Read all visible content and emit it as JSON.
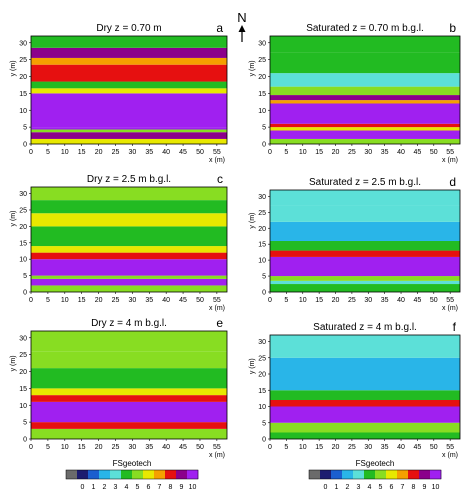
{
  "chart_data": [
    {
      "type": "heatmap",
      "title": "Dry z = 0.70 m",
      "panel_letter": "a",
      "ylabel": "y (m)",
      "xlabel": "x (m)",
      "xlim": [
        0,
        58
      ],
      "ylim": [
        0,
        32
      ],
      "x_ticks": [
        "0",
        "5",
        "10",
        "15",
        "20",
        "25",
        "30",
        "35",
        "40",
        "45",
        "50",
        "55"
      ],
      "y_ticks": [
        "0",
        "5",
        "10",
        "15",
        "20",
        "25",
        "30"
      ],
      "bands": [
        {
          "y": [
            0,
            1.5
          ],
          "value": 5.5
        },
        {
          "y": [
            1.5,
            3.5
          ],
          "value": 9.0
        },
        {
          "y": [
            3.5,
            4.3
          ],
          "value": 5.0
        },
        {
          "y": [
            4.3,
            5.0
          ],
          "value": 9.5
        },
        {
          "y": [
            5.0,
            15.0
          ],
          "value": 10.0
        },
        {
          "y": [
            15.0,
            16.5
          ],
          "value": 6.0
        },
        {
          "y": [
            16.5,
            18.5
          ],
          "value": 4.0
        },
        {
          "y": [
            18.5,
            23.5
          ],
          "value": 8.3
        },
        {
          "y": [
            23.5,
            25.5
          ],
          "value": 6.5
        },
        {
          "y": [
            25.5,
            28.5
          ],
          "value": 8.5
        },
        {
          "y": [
            28.5,
            32.0
          ],
          "value": 4.0
        }
      ]
    },
    {
      "type": "heatmap",
      "title": "Saturated z = 0.70 m b.g.l.",
      "panel_letter": "b",
      "ylabel": "y (m)",
      "xlabel": "x (m)",
      "xlim": [
        0,
        58
      ],
      "ylim": [
        0,
        32
      ],
      "x_ticks": [
        "0",
        "5",
        "10",
        "15",
        "20",
        "25",
        "30",
        "35",
        "40",
        "45",
        "50",
        "55"
      ],
      "y_ticks": [
        "0",
        "5",
        "10",
        "15",
        "20",
        "25",
        "30"
      ],
      "bands": [
        {
          "y": [
            0,
            1.5
          ],
          "value": 4.5
        },
        {
          "y": [
            1.5,
            4.0
          ],
          "value": 10.0
        },
        {
          "y": [
            4.0,
            5.0
          ],
          "value": 6.0
        },
        {
          "y": [
            5.0,
            6.0
          ],
          "value": 8.0
        },
        {
          "y": [
            6.0,
            12.0
          ],
          "value": 10.0
        },
        {
          "y": [
            12.0,
            13.0
          ],
          "value": 7.0
        },
        {
          "y": [
            13.0,
            14.5
          ],
          "value": 8.5
        },
        {
          "y": [
            14.5,
            17.0
          ],
          "value": 4.5
        },
        {
          "y": [
            17.0,
            21.0
          ],
          "value": 3.0
        },
        {
          "y": [
            21.0,
            27.0
          ],
          "value": 4.0
        },
        {
          "y": [
            27.0,
            32.0
          ],
          "value": 3.5
        }
      ]
    },
    {
      "type": "heatmap",
      "title": "Dry z = 2.5 m b.g.l.",
      "panel_letter": "c",
      "ylabel": "y (m)",
      "xlabel": "x (m)",
      "xlim": [
        0,
        58
      ],
      "ylim": [
        0,
        32
      ],
      "x_ticks": [
        "0",
        "5",
        "10",
        "15",
        "20",
        "25",
        "30",
        "35",
        "40",
        "45",
        "50",
        "55"
      ],
      "y_ticks": [
        "0",
        "5",
        "10",
        "15",
        "20",
        "25",
        "30"
      ],
      "bands": [
        {
          "y": [
            0,
            2.0
          ],
          "value": 5.0
        },
        {
          "y": [
            2.0,
            4.0
          ],
          "value": 9.5
        },
        {
          "y": [
            4.0,
            5.0
          ],
          "value": 4.5
        },
        {
          "y": [
            5.0,
            10.0
          ],
          "value": 10.0
        },
        {
          "y": [
            10.0,
            12.0
          ],
          "value": 8.0
        },
        {
          "y": [
            12.0,
            14.0
          ],
          "value": 6.0
        },
        {
          "y": [
            14.0,
            20.0
          ],
          "value": 4.0
        },
        {
          "y": [
            20.0,
            24.0
          ],
          "value": 5.5
        },
        {
          "y": [
            24.0,
            28.0
          ],
          "value": 4.0
        },
        {
          "y": [
            28.0,
            32.0
          ],
          "value": 5.0
        }
      ]
    },
    {
      "type": "heatmap",
      "title": "Saturated z = 2.5 m b.g.l.",
      "panel_letter": "d",
      "ylabel": "y (m)",
      "xlabel": "x (m)",
      "xlim": [
        0,
        58
      ],
      "ylim": [
        0,
        32
      ],
      "x_ticks": [
        "0",
        "5",
        "10",
        "15",
        "20",
        "25",
        "30",
        "35",
        "40",
        "45",
        "50",
        "55"
      ],
      "y_ticks": [
        "0",
        "5",
        "10",
        "15",
        "20",
        "25",
        "30"
      ],
      "bands": [
        {
          "y": [
            0,
            2.5
          ],
          "value": 4.0
        },
        {
          "y": [
            2.5,
            3.5
          ],
          "value": 3.0
        },
        {
          "y": [
            3.5,
            5.0
          ],
          "value": 5.0
        },
        {
          "y": [
            5.0,
            11.0
          ],
          "value": 10.0
        },
        {
          "y": [
            11.0,
            13.0
          ],
          "value": 7.5
        },
        {
          "y": [
            13.0,
            16.0
          ],
          "value": 4.0
        },
        {
          "y": [
            16.0,
            22.0
          ],
          "value": 1.5
        },
        {
          "y": [
            22.0,
            27.0
          ],
          "value": 2.5
        },
        {
          "y": [
            27.0,
            32.0
          ],
          "value": 3.0
        }
      ]
    },
    {
      "type": "heatmap",
      "title": "Dry z = 4 m b.g.l.",
      "panel_letter": "e",
      "ylabel": "y (m)",
      "xlabel": "x (m)",
      "xlim": [
        0,
        58
      ],
      "ylim": [
        0,
        32
      ],
      "x_ticks": [
        "0",
        "5",
        "10",
        "15",
        "20",
        "25",
        "30",
        "35",
        "40",
        "45",
        "50",
        "55"
      ],
      "y_ticks": [
        "0",
        "5",
        "10",
        "15",
        "20",
        "25",
        "30"
      ],
      "bands": [
        {
          "y": [
            0,
            3.0
          ],
          "value": 5.0
        },
        {
          "y": [
            3.0,
            5.0
          ],
          "value": 7.5
        },
        {
          "y": [
            5.0,
            11.0
          ],
          "value": 10.0
        },
        {
          "y": [
            11.0,
            13.0
          ],
          "value": 8.0
        },
        {
          "y": [
            13.0,
            15.0
          ],
          "value": 5.5
        },
        {
          "y": [
            15.0,
            21.0
          ],
          "value": 4.0
        },
        {
          "y": [
            21.0,
            26.0
          ],
          "value": 5.0
        },
        {
          "y": [
            26.0,
            32.0
          ],
          "value": 4.5
        }
      ]
    },
    {
      "type": "heatmap",
      "title": "Saturated z = 4 m b.g.l.",
      "panel_letter": "f",
      "ylabel": "y (m)",
      "xlabel": "x (m)",
      "xlim": [
        0,
        58
      ],
      "ylim": [
        0,
        32
      ],
      "x_ticks": [
        "0",
        "5",
        "10",
        "15",
        "20",
        "25",
        "30",
        "35",
        "40",
        "45",
        "50",
        "55"
      ],
      "y_ticks": [
        "0",
        "5",
        "10",
        "15",
        "20",
        "25",
        "30"
      ],
      "bands": [
        {
          "y": [
            0,
            2.0
          ],
          "value": 3.5
        },
        {
          "y": [
            2.0,
            5.0
          ],
          "value": 4.5
        },
        {
          "y": [
            5.0,
            10.0
          ],
          "value": 10.0
        },
        {
          "y": [
            10.0,
            12.0
          ],
          "value": 7.5
        },
        {
          "y": [
            12.0,
            15.0
          ],
          "value": 3.5
        },
        {
          "y": [
            15.0,
            20.0
          ],
          "value": 2.0
        },
        {
          "y": [
            20.0,
            25.0
          ],
          "value": 1.5
        },
        {
          "y": [
            25.0,
            32.0
          ],
          "value": 2.5
        }
      ]
    }
  ],
  "north_label": "N",
  "colorbar": {
    "label": "FSgeotech",
    "ticks": [
      "0",
      "1",
      "2",
      "3",
      "4",
      "5",
      "6",
      "7",
      "8",
      "9",
      "10"
    ],
    "colors": [
      "#6b6b6b",
      "#1c1c70",
      "#1b5fcf",
      "#29b5e8",
      "#5ce0d8",
      "#22bb22",
      "#88dd22",
      "#e8e800",
      "#f5a000",
      "#e61010",
      "#8b008b",
      "#a020f0"
    ]
  }
}
